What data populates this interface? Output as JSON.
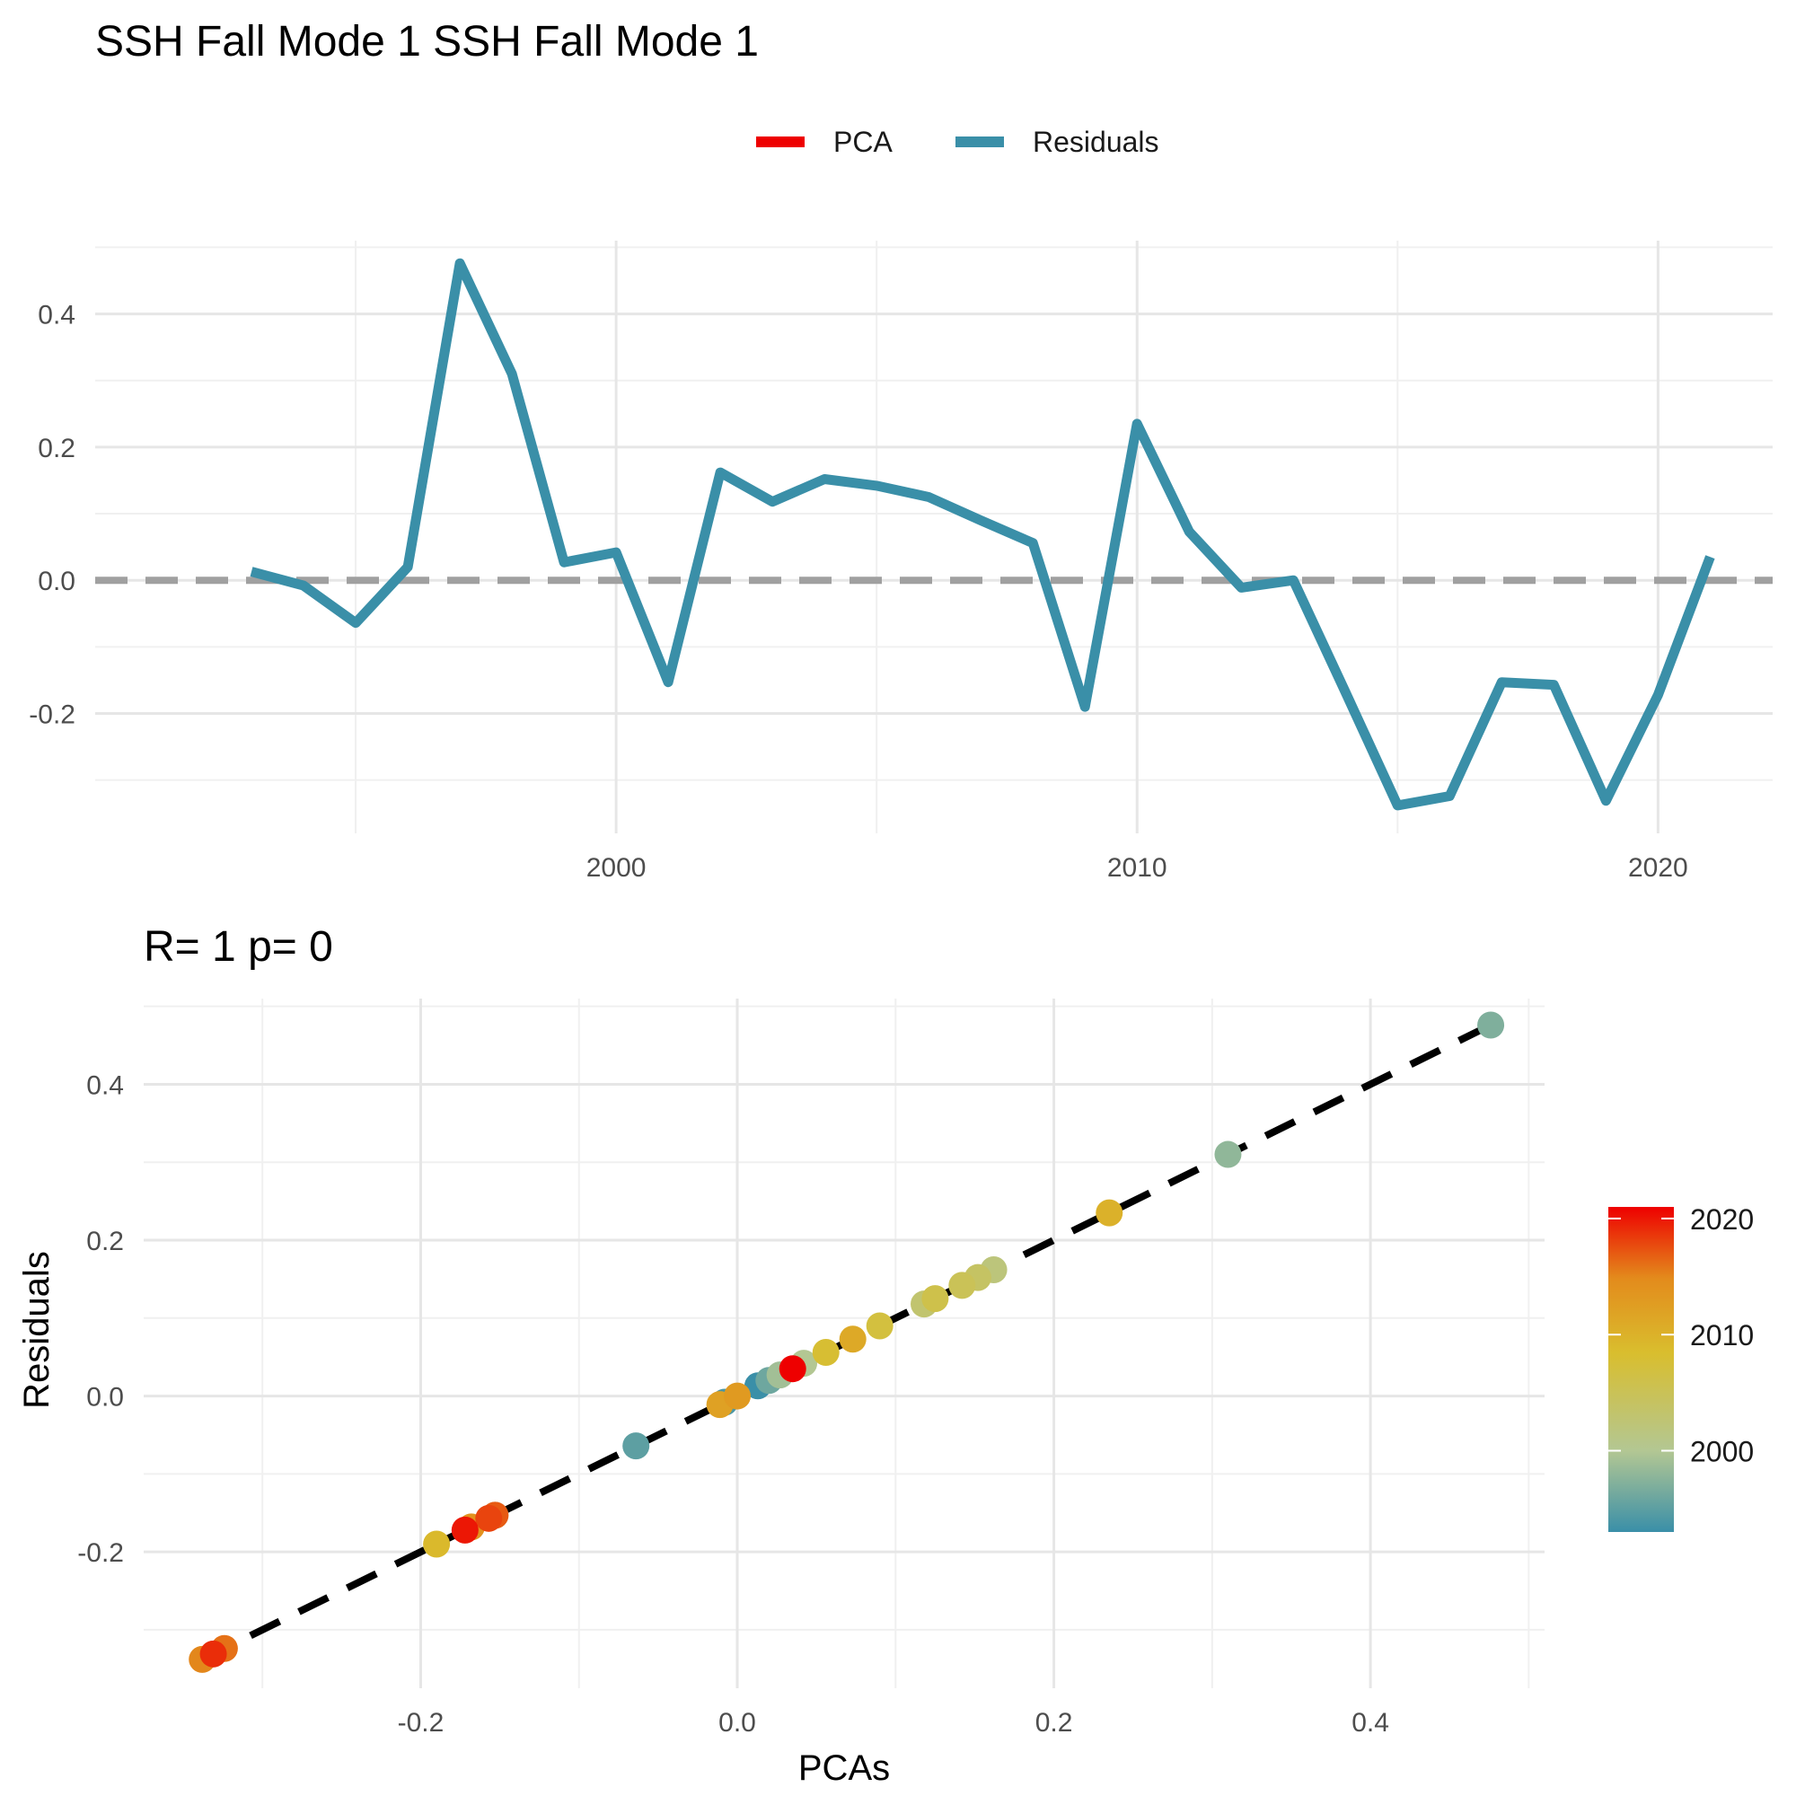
{
  "figure": {
    "title": "SSH Fall Mode 1 SSH Fall Mode 1"
  },
  "chart_data": [
    {
      "type": "line",
      "legend": {
        "placement": "top",
        "entries": [
          {
            "name": "PCA",
            "color": "#ee0000"
          },
          {
            "name": "Residuals",
            "color": "#3a8fa8"
          }
        ]
      },
      "x": [
        1993,
        1994,
        1995,
        1996,
        1997,
        1998,
        1999,
        2000,
        2001,
        2002,
        2003,
        2004,
        2005,
        2006,
        2007,
        2008,
        2009,
        2010,
        2011,
        2012,
        2013,
        2014,
        2015,
        2016,
        2017,
        2018,
        2019,
        2020,
        2021
      ],
      "series": [
        {
          "name": "Residuals",
          "color": "#3a8fa8",
          "values": [
            0.013,
            -0.008,
            -0.064,
            0.02,
            0.476,
            0.31,
            0.027,
            0.042,
            -0.153,
            0.162,
            0.118,
            0.152,
            0.142,
            0.125,
            0.09,
            0.056,
            -0.19,
            0.235,
            0.073,
            -0.011,
            0.0,
            -0.168,
            -0.338,
            -0.324,
            -0.153,
            -0.157,
            -0.331,
            -0.172,
            0.035
          ]
        }
      ],
      "reference_line": {
        "y": 0,
        "style": "dashed",
        "color": "#a0a0a0"
      },
      "xticks": [
        "2000",
        "2010",
        "2020"
      ],
      "yticks": [
        "-0.2",
        "0.0",
        "0.2",
        "0.4"
      ],
      "xlim": [
        1990,
        2022.2
      ],
      "ylim": [
        -0.38,
        0.51
      ],
      "grid": true
    },
    {
      "type": "scatter",
      "subtitle": "R= 1  p= 0",
      "xlabel": "PCAs",
      "ylabel": "Residuals",
      "xticks": [
        "-0.2",
        "0.0",
        "0.2",
        "0.4"
      ],
      "yticks": [
        "-0.2",
        "0.0",
        "0.2",
        "0.4"
      ],
      "xlim": [
        -0.375,
        0.51
      ],
      "ylim": [
        -0.375,
        0.51
      ],
      "grid": true,
      "fit_line": {
        "style": "dashed",
        "color": "#000000",
        "from": [
          -0.338,
          -0.338
        ],
        "to": [
          0.476,
          0.476
        ]
      },
      "colorbar": {
        "ticks": [
          "2020",
          "2010",
          "2000"
        ],
        "range": [
          1993,
          2021
        ],
        "colors": [
          "#3a8fa8",
          "#b3c793",
          "#d9be2e",
          "#e38b1c",
          "#ee0000"
        ]
      },
      "points": [
        {
          "year": 1993,
          "x": 0.013,
          "y": 0.013
        },
        {
          "year": 1994,
          "x": -0.008,
          "y": -0.008
        },
        {
          "year": 1995,
          "x": -0.064,
          "y": -0.064
        },
        {
          "year": 1996,
          "x": 0.02,
          "y": 0.02
        },
        {
          "year": 1997,
          "x": 0.476,
          "y": 0.476
        },
        {
          "year": 1998,
          "x": 0.31,
          "y": 0.31
        },
        {
          "year": 1999,
          "x": 0.027,
          "y": 0.027
        },
        {
          "year": 2000,
          "x": 0.042,
          "y": 0.042
        },
        {
          "year": 2001,
          "x": -0.153,
          "y": -0.153
        },
        {
          "year": 2002,
          "x": 0.162,
          "y": 0.162
        },
        {
          "year": 2003,
          "x": 0.118,
          "y": 0.118
        },
        {
          "year": 2004,
          "x": 0.152,
          "y": 0.152
        },
        {
          "year": 2005,
          "x": 0.142,
          "y": 0.142
        },
        {
          "year": 2006,
          "x": 0.125,
          "y": 0.125
        },
        {
          "year": 2007,
          "x": 0.09,
          "y": 0.09
        },
        {
          "year": 2008,
          "x": 0.056,
          "y": 0.056
        },
        {
          "year": 2009,
          "x": -0.19,
          "y": -0.19
        },
        {
          "year": 2010,
          "x": 0.235,
          "y": 0.235
        },
        {
          "year": 2011,
          "x": 0.073,
          "y": 0.073
        },
        {
          "year": 2012,
          "x": -0.011,
          "y": -0.011
        },
        {
          "year": 2013,
          "x": 0.0,
          "y": 0.0
        },
        {
          "year": 2014,
          "x": -0.168,
          "y": -0.168
        },
        {
          "year": 2015,
          "x": -0.338,
          "y": -0.338
        },
        {
          "year": 2016,
          "x": -0.324,
          "y": -0.324
        },
        {
          "year": 2017,
          "x": -0.153,
          "y": -0.153
        },
        {
          "year": 2018,
          "x": -0.157,
          "y": -0.157
        },
        {
          "year": 2019,
          "x": -0.331,
          "y": -0.331
        },
        {
          "year": 2020,
          "x": -0.172,
          "y": -0.172
        },
        {
          "year": 2021,
          "x": 0.035,
          "y": 0.035
        }
      ]
    }
  ]
}
